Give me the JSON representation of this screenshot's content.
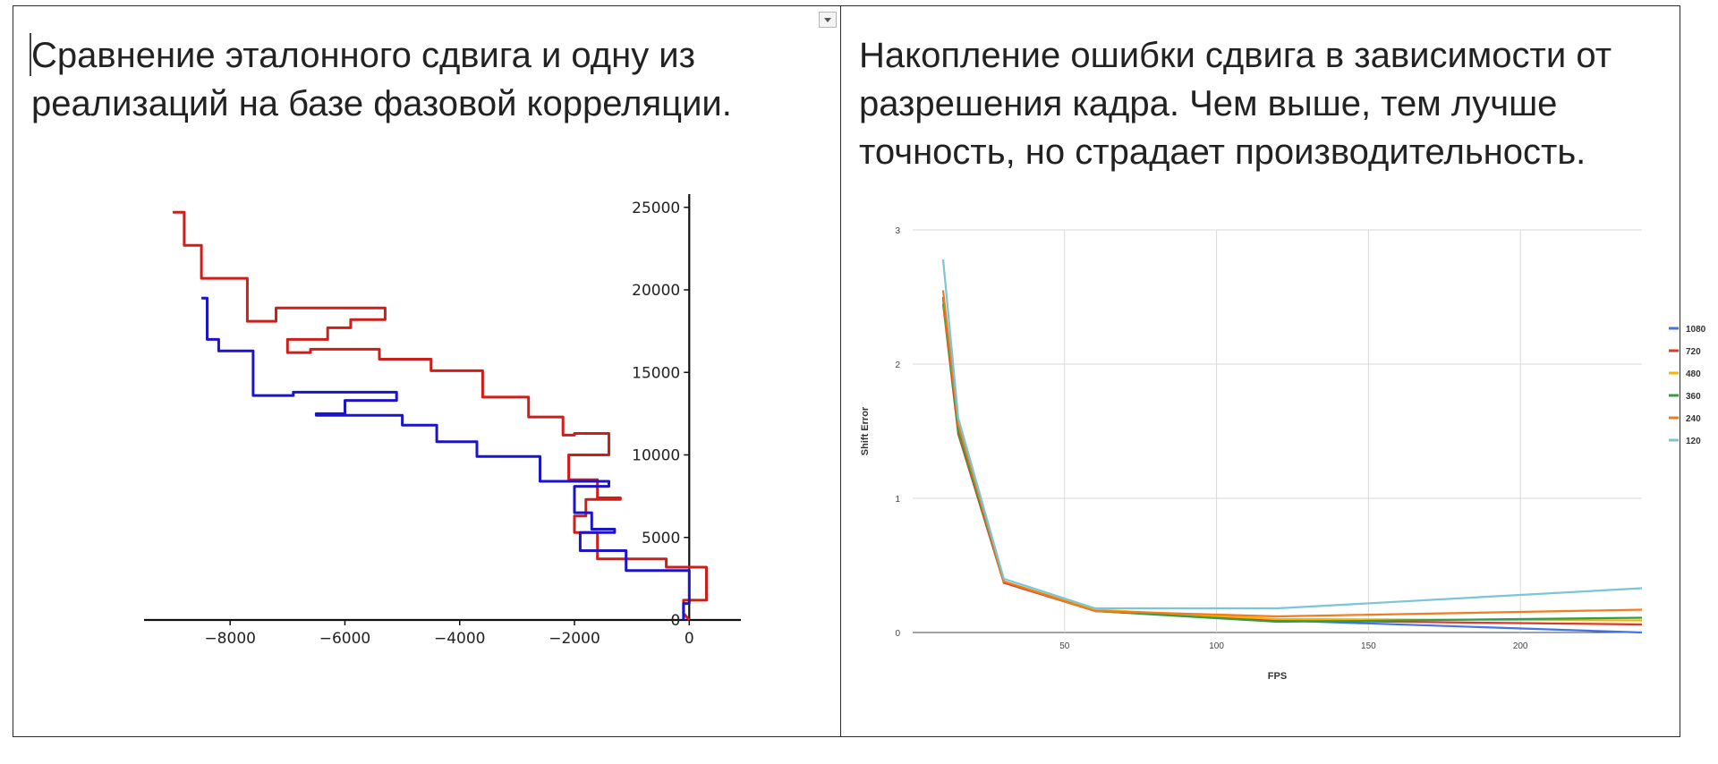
{
  "cells": [
    {
      "title": "Сравнение эталонного сдвига и одну из реализаций на базе фазовой корреляции."
    },
    {
      "title": "Накопление ошибки сдвига в зависимости от разрешения кадра. Чем выше, тем лучше точность, но страдает производительность."
    }
  ],
  "chart_data": [
    {
      "type": "line",
      "xlim": [
        -9500,
        900
      ],
      "ylim": [
        0,
        25800
      ],
      "x_ticks": [
        -8000,
        -6000,
        -4000,
        -2000,
        0
      ],
      "x_tick_labels": [
        "−8000",
        "−6000",
        "−4000",
        "−2000",
        "0"
      ],
      "y_ticks": [
        0,
        5000,
        10000,
        15000,
        20000,
        25000
      ],
      "y_tick_labels": [
        "0",
        "5000",
        "10000",
        "15000",
        "20000",
        "25000"
      ],
      "grid": false,
      "series": [
        {
          "color": "#cc1f1a",
          "points": [
            [
              -9000,
              24700
            ],
            [
              -8800,
              24700
            ],
            [
              -8800,
              22700
            ],
            [
              -8500,
              22700
            ],
            [
              -8500,
              20700
            ],
            [
              -7700,
              20700
            ],
            [
              -7700,
              18100
            ],
            [
              -7200,
              18100
            ],
            [
              -7200,
              18900
            ],
            [
              -5300,
              18900
            ],
            [
              -5300,
              18200
            ],
            [
              -5900,
              18200
            ],
            [
              -5900,
              17700
            ],
            [
              -6300,
              17700
            ],
            [
              -6300,
              17000
            ],
            [
              -7000,
              17000
            ],
            [
              -7000,
              16200
            ],
            [
              -6600,
              16200
            ],
            [
              -6600,
              16400
            ],
            [
              -5400,
              16400
            ],
            [
              -5400,
              15800
            ],
            [
              -4500,
              15800
            ],
            [
              -4500,
              15100
            ],
            [
              -3600,
              15100
            ],
            [
              -3600,
              13500
            ],
            [
              -2800,
              13500
            ],
            [
              -2800,
              12300
            ],
            [
              -2200,
              12300
            ],
            [
              -2200,
              11200
            ],
            [
              -2000,
              11200
            ],
            [
              -2000,
              11300
            ],
            [
              -1400,
              11300
            ],
            [
              -1400,
              10000
            ],
            [
              -2100,
              10000
            ],
            [
              -2100,
              8500
            ],
            [
              -1600,
              8500
            ],
            [
              -1600,
              7400
            ],
            [
              -1200,
              7400
            ],
            [
              -1200,
              7300
            ],
            [
              -1800,
              7300
            ],
            [
              -1800,
              6300
            ],
            [
              -2000,
              6300
            ],
            [
              -2000,
              5300
            ],
            [
              -1600,
              5300
            ],
            [
              -1600,
              3700
            ],
            [
              -400,
              3700
            ],
            [
              -400,
              3200
            ],
            [
              300,
              3200
            ],
            [
              300,
              1200
            ],
            [
              -100,
              1200
            ],
            [
              -100,
              400
            ],
            [
              0,
              0
            ]
          ]
        },
        {
          "color": "#1c14c8",
          "points": [
            [
              -8500,
              19500
            ],
            [
              -8400,
              19500
            ],
            [
              -8400,
              17000
            ],
            [
              -8200,
              17000
            ],
            [
              -8200,
              16300
            ],
            [
              -7600,
              16300
            ],
            [
              -7600,
              13600
            ],
            [
              -6900,
              13600
            ],
            [
              -6900,
              13800
            ],
            [
              -5100,
              13800
            ],
            [
              -5100,
              13300
            ],
            [
              -6000,
              13300
            ],
            [
              -6000,
              12500
            ],
            [
              -6500,
              12500
            ],
            [
              -6500,
              12400
            ],
            [
              -5000,
              12400
            ],
            [
              -5000,
              11800
            ],
            [
              -4400,
              11800
            ],
            [
              -4400,
              10800
            ],
            [
              -3700,
              10800
            ],
            [
              -3700,
              9900
            ],
            [
              -2600,
              9900
            ],
            [
              -2600,
              8400
            ],
            [
              -1400,
              8400
            ],
            [
              -1400,
              8100
            ],
            [
              -2000,
              8100
            ],
            [
              -2000,
              6500
            ],
            [
              -1700,
              6500
            ],
            [
              -1700,
              5500
            ],
            [
              -1300,
              5500
            ],
            [
              -1300,
              5300
            ],
            [
              -1900,
              5300
            ],
            [
              -1900,
              4200
            ],
            [
              -1100,
              4200
            ],
            [
              -1100,
              3000
            ],
            [
              0,
              3000
            ],
            [
              0,
              1000
            ],
            [
              -100,
              1000
            ],
            [
              -100,
              0
            ]
          ]
        }
      ]
    },
    {
      "type": "line",
      "xlabel": "FPS",
      "ylabel": "Shift Error",
      "xlim": [
        0,
        240
      ],
      "ylim": [
        0,
        3
      ],
      "x_ticks": [
        50,
        100,
        150,
        200
      ],
      "y_ticks": [
        0,
        1,
        2,
        3
      ],
      "grid": true,
      "legend": "right",
      "x": [
        10,
        15,
        30,
        60,
        120,
        240
      ],
      "series": [
        {
          "name": "1080",
          "color": "#4472e8",
          "values": [
            2.5,
            1.5,
            0.38,
            0.16,
            0.09,
            0.0
          ]
        },
        {
          "name": "720",
          "color": "#db3a2a",
          "values": [
            2.45,
            1.48,
            0.37,
            0.16,
            0.09,
            0.06
          ]
        },
        {
          "name": "480",
          "color": "#f4b400",
          "values": [
            2.48,
            1.52,
            0.38,
            0.17,
            0.1,
            0.09
          ]
        },
        {
          "name": "360",
          "color": "#2f9e44",
          "values": [
            2.5,
            1.5,
            0.38,
            0.16,
            0.08,
            0.11
          ]
        },
        {
          "name": "240",
          "color": "#f37b1d",
          "values": [
            2.55,
            1.55,
            0.38,
            0.16,
            0.12,
            0.17
          ]
        },
        {
          "name": "120",
          "color": "#7ac5d9",
          "values": [
            2.78,
            1.6,
            0.4,
            0.18,
            0.18,
            0.33
          ]
        }
      ]
    }
  ]
}
